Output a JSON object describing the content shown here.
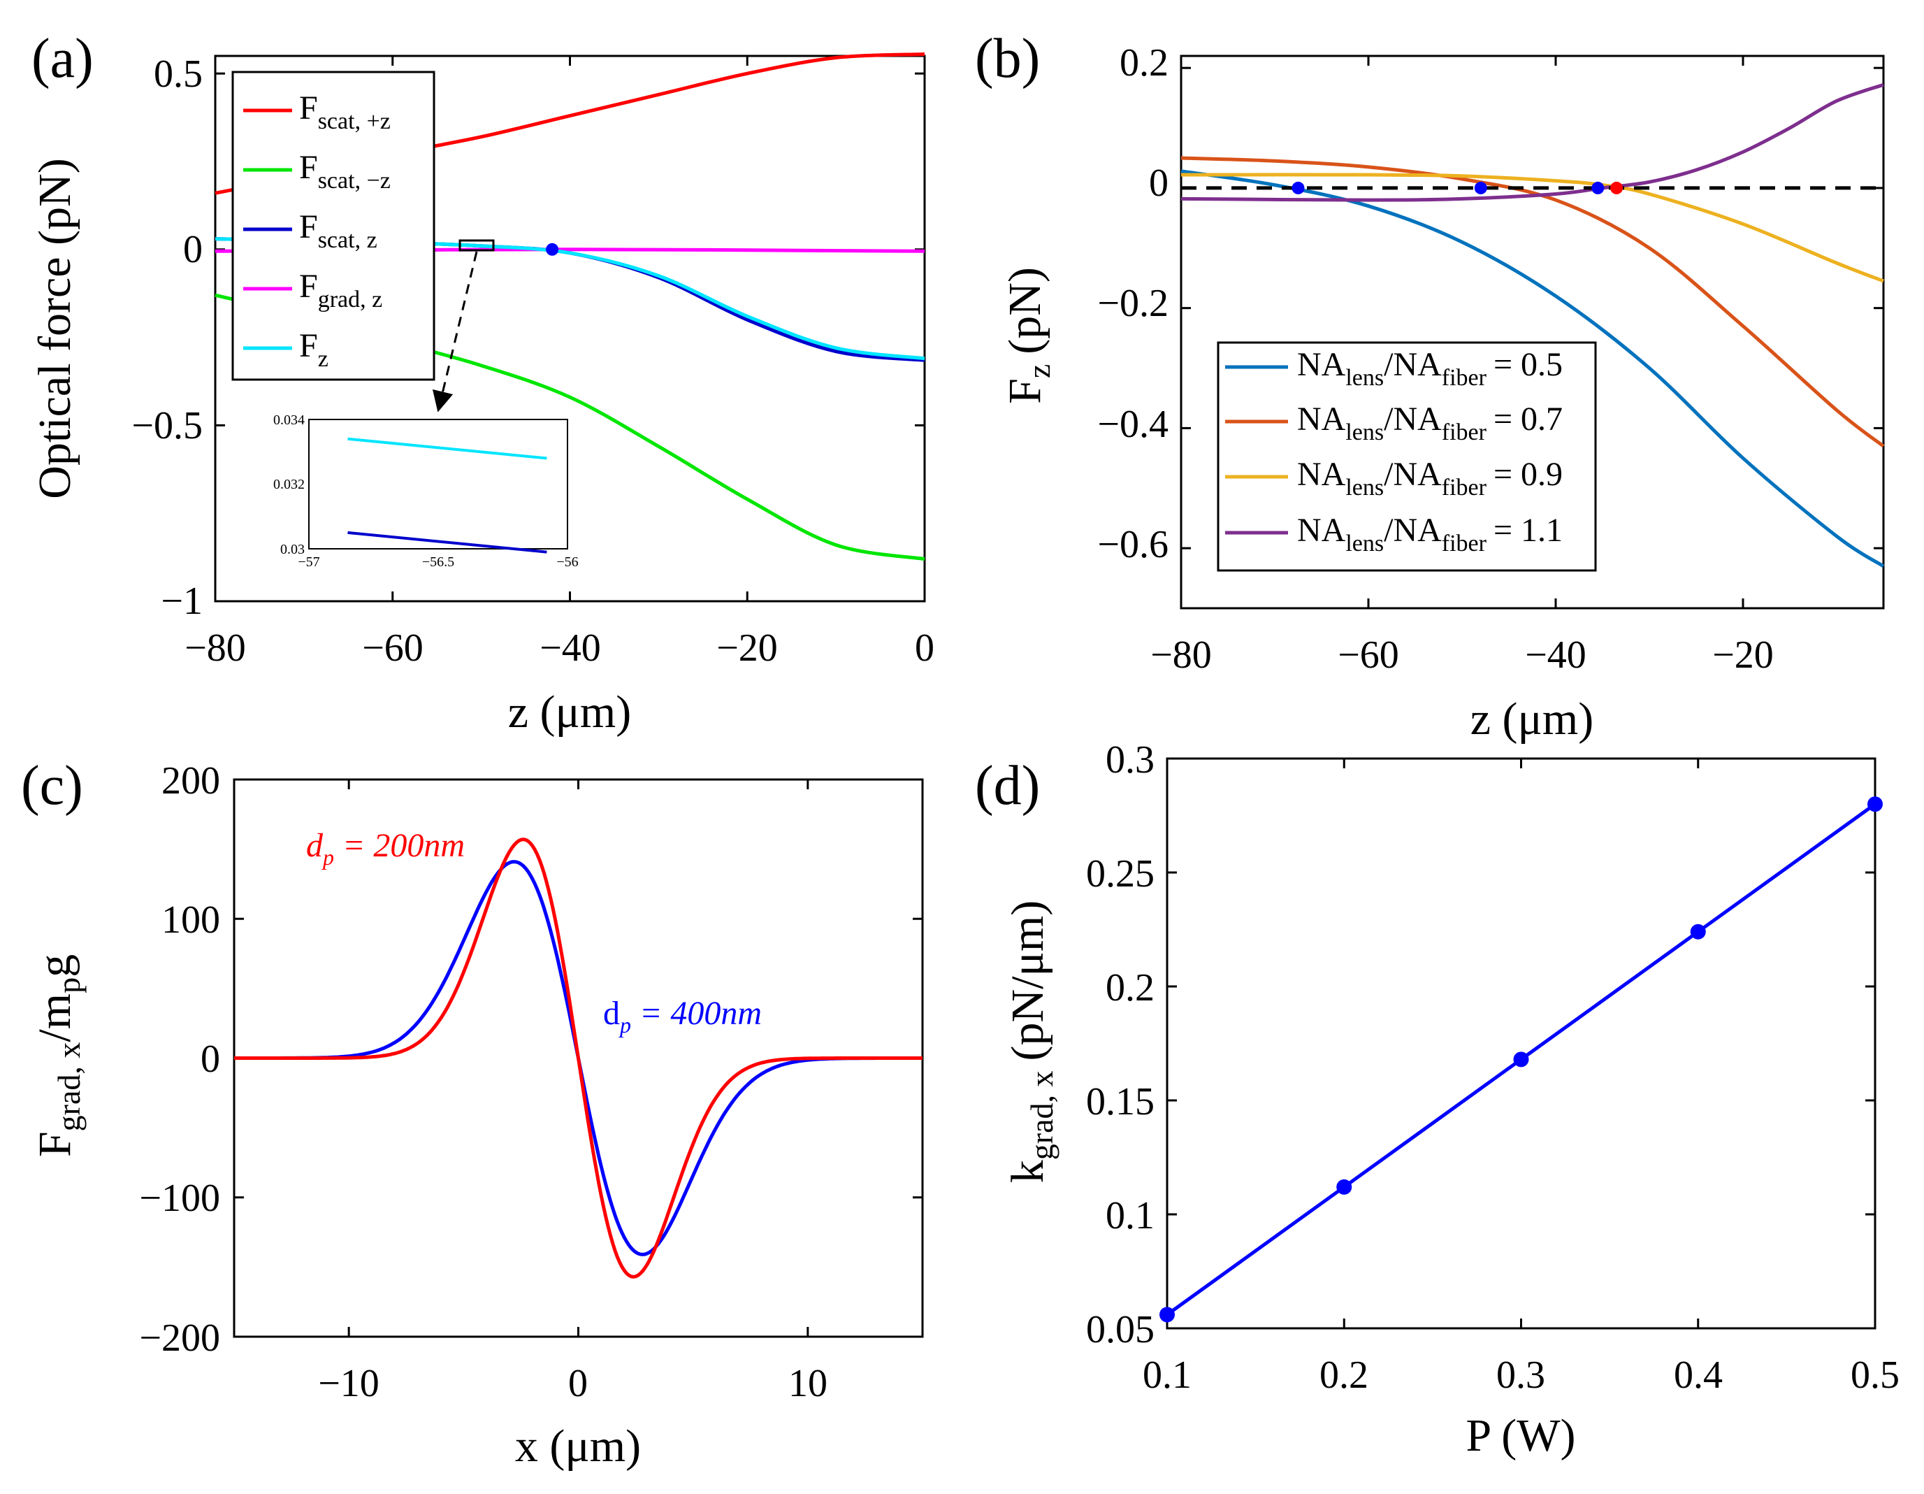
{
  "chart_data": [
    {
      "panel": "(a)",
      "type": "line",
      "xlabel": "z (μm)",
      "ylabel": "Optical force (pN)",
      "xlim": [
        -80,
        0
      ],
      "ylim": [
        -1,
        0.55
      ],
      "xticks": [
        "−80",
        "−60",
        "−40",
        "−20",
        "0"
      ],
      "yticks": [
        "0.5",
        "0",
        "−0.5",
        "−1"
      ],
      "series": [
        {
          "name": "F scat, +z",
          "main": "F",
          "sub": "scat, +z",
          "color": "#ff0000",
          "x": [
            -80,
            -70,
            -60,
            -50,
            -40,
            -30,
            -20,
            -10,
            0
          ],
          "values": [
            0.16,
            0.21,
            0.27,
            0.32,
            0.38,
            0.44,
            0.5,
            0.545,
            0.555
          ]
        },
        {
          "name": "F scat, −z",
          "main": "F",
          "sub": "scat, −z",
          "color": "#00e600",
          "x": [
            -80,
            -70,
            -60,
            -50,
            -40,
            -30,
            -20,
            -10,
            0
          ],
          "values": [
            -0.13,
            -0.19,
            -0.26,
            -0.33,
            -0.42,
            -0.56,
            -0.71,
            -0.84,
            -0.88
          ]
        },
        {
          "name": "F scat, z",
          "main": "F",
          "sub": "scat, z",
          "color": "#0000cc",
          "x": [
            -80,
            -70,
            -60,
            -50,
            -40,
            -30,
            -20,
            -10,
            0
          ],
          "values": [
            0.03,
            0.025,
            0.02,
            0.01,
            -0.01,
            -0.08,
            -0.2,
            -0.29,
            -0.315
          ]
        },
        {
          "name": "F grad, z",
          "main": "F",
          "sub": "grad, z",
          "color": "#ff00ff",
          "x": [
            -80,
            -40,
            0
          ],
          "values": [
            -0.005,
            0.0,
            -0.005
          ]
        },
        {
          "name": "F z",
          "main": "F",
          "sub": "z",
          "color": "#00e5ff",
          "x": [
            -80,
            -70,
            -60,
            -50,
            -40,
            -30,
            -20,
            -10,
            0
          ],
          "values": [
            0.03,
            0.025,
            0.02,
            0.01,
            -0.01,
            -0.075,
            -0.19,
            -0.28,
            -0.31
          ]
        }
      ],
      "marker": {
        "x": -42,
        "y": 0,
        "color": "#0000ff"
      },
      "inset": {
        "xlim": [
          -57,
          -56
        ],
        "ylim": [
          0.03,
          0.034
        ],
        "xticks": [
          "−57",
          "−56.5",
          "−56"
        ],
        "yticks": [
          "0.034",
          "0.032",
          "0.03"
        ],
        "series": [
          {
            "color": "#00e5ff",
            "x": [
              -56.85,
              -56.08
            ],
            "values": [
              0.0334,
              0.0328
            ]
          },
          {
            "color": "#0000cc",
            "x": [
              -56.85,
              -56.08
            ],
            "values": [
              0.0305,
              0.0299
            ]
          }
        ]
      }
    },
    {
      "panel": "(b)",
      "type": "line",
      "xlabel": "z (μm)",
      "ylabel_main": "F",
      "ylabel_sub": "z",
      "ylabel_unit": "(pN)",
      "xlim": [
        -80,
        -5
      ],
      "ylim": [
        -0.7,
        0.22
      ],
      "xticks": [
        "−80",
        "−60",
        "−40",
        "−20"
      ],
      "yticks": [
        "0.2",
        "0",
        "−0.2",
        "−0.4",
        "−0.6"
      ],
      "series": [
        {
          "name": "NAlens/NAfiber = 0.5",
          "color": "#0072bd",
          "x": [
            -80,
            -70,
            -60,
            -50,
            -40,
            -30,
            -20,
            -10,
            -5
          ],
          "values": [
            0.028,
            0.005,
            -0.03,
            -0.09,
            -0.18,
            -0.3,
            -0.45,
            -0.58,
            -0.63
          ]
        },
        {
          "name": "NAlens/NAfiber = 0.7",
          "color": "#d95319",
          "x": [
            -80,
            -70,
            -60,
            -50,
            -40,
            -30,
            -20,
            -10,
            -5
          ],
          "values": [
            0.05,
            0.045,
            0.035,
            0.015,
            -0.02,
            -0.1,
            -0.23,
            -0.37,
            -0.43
          ]
        },
        {
          "name": "NAlens/NAfiber = 0.9",
          "color": "#edb120",
          "x": [
            -80,
            -60,
            -50,
            -40,
            -35,
            -30,
            -20,
            -10,
            -5
          ],
          "values": [
            0.022,
            0.022,
            0.02,
            0.012,
            0.005,
            -0.01,
            -0.06,
            -0.125,
            -0.155
          ]
        },
        {
          "name": "NAlens/NAfiber = 1.1",
          "color": "#7e2f8e",
          "x": [
            -80,
            -60,
            -50,
            -40,
            -35,
            -30,
            -25,
            -20,
            -15,
            -10,
            -5
          ],
          "values": [
            -0.018,
            -0.02,
            -0.018,
            -0.01,
            0.0,
            0.01,
            0.03,
            0.06,
            0.1,
            0.145,
            0.172
          ]
        }
      ],
      "legend": {
        "prefix": "NA",
        "sub1": "lens",
        "mid": "/NA",
        "sub2": "fiber",
        "values": [
          "= 0.5",
          "= 0.7",
          "= 0.9",
          "= 1.1"
        ],
        "position": "bottom-left"
      },
      "zero_line": {
        "y": 0,
        "style": "dashed"
      },
      "markers": [
        {
          "x": -67.5,
          "y": 0,
          "color": "#0000ff"
        },
        {
          "x": -48,
          "y": 0,
          "color": "#0000ff"
        },
        {
          "x": -35.5,
          "y": 0,
          "color": "#0000ff"
        },
        {
          "x": -33.5,
          "y": 0,
          "color": "#ff0000"
        }
      ]
    },
    {
      "panel": "(c)",
      "type": "line",
      "xlabel": "x (μm)",
      "ylabel_main": "F",
      "ylabel_sub": "grad, x",
      "ylabel_rest": "/m",
      "ylabel_sub2": "p",
      "ylabel_end": "g",
      "xlim": [
        -15,
        15
      ],
      "ylim": [
        -200,
        200
      ],
      "xticks": [
        "−10",
        "0",
        "10"
      ],
      "yticks": [
        "200",
        "100",
        "0",
        "−100",
        "−200"
      ],
      "series": [
        {
          "name": "d_p = 200nm",
          "color": "#ff0000",
          "amplitude": 157,
          "peak_x": -2.4
        },
        {
          "name": "d_p = 400nm",
          "color": "#0000ff",
          "amplitude": 141,
          "peak_x": -2.8
        }
      ],
      "annotations": [
        {
          "main": "d",
          "sub": "p",
          "text": " = 200nm",
          "color": "#ff0000"
        },
        {
          "main": "d",
          "sub": "p",
          "text": " = 400nm",
          "color": "#0000ff"
        }
      ]
    },
    {
      "panel": "(d)",
      "type": "line",
      "xlabel": "P (W)",
      "ylabel_main": "k",
      "ylabel_sub": "grad, x",
      "ylabel_unit": "(pN/μm)",
      "xlim": [
        0.1,
        0.5
      ],
      "ylim": [
        0.05,
        0.3
      ],
      "xticks": [
        "0.1",
        "0.2",
        "0.3",
        "0.4",
        "0.5"
      ],
      "yticks": [
        "0.3",
        "0.25",
        "0.2",
        "0.15",
        "0.1",
        "0.05"
      ],
      "series": [
        {
          "name": "k_grad,x",
          "color": "#0000ff",
          "x": [
            0.1,
            0.2,
            0.3,
            0.4,
            0.5
          ],
          "values": [
            0.056,
            0.112,
            0.168,
            0.224,
            0.28
          ]
        }
      ]
    }
  ]
}
